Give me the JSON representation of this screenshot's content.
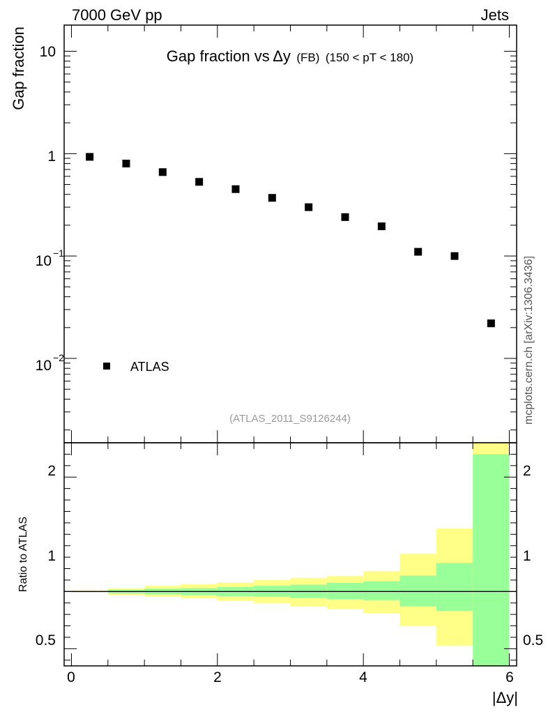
{
  "header": {
    "left": "7000 GeV pp",
    "right": "Jets"
  },
  "side_label": "mcplots.cern.ch [arXiv:1306.3436]",
  "watermark": "(ATLAS_2011_S9126244)",
  "chart_data": [
    {
      "type": "scatter",
      "title_main": "Gap fraction vs",
      "title_delta": "Δy",
      "title_tag": "(FB)",
      "title_range": "(150 < pT < 180)",
      "ylabel": "Gap fraction",
      "yscale": "log",
      "ylim": [
        0.0015,
        18
      ],
      "xlim": [
        -0.1,
        6.1
      ],
      "ytick_labels": {
        "t10": "10",
        "t1": "1",
        "t01_base": "10",
        "t01_exp": "−1",
        "t001_base": "10",
        "t001_exp": "−2"
      },
      "legend": {
        "label": "ATLAS",
        "position": "lower-left"
      },
      "series": [
        {
          "name": "ATLAS",
          "x": [
            0.25,
            0.75,
            1.25,
            1.75,
            2.25,
            2.75,
            3.25,
            3.75,
            4.25,
            4.75,
            5.25,
            5.75
          ],
          "y": [
            0.93,
            0.8,
            0.66,
            0.53,
            0.45,
            0.37,
            0.3,
            0.24,
            0.195,
            0.11,
            0.1,
            0.022
          ]
        }
      ]
    },
    {
      "type": "area",
      "ylabel": "Ratio to ATLAS",
      "xlabel": "|Δy|",
      "ylim": [
        0.35,
        2.3
      ],
      "xlim": [
        -0.1,
        6.1
      ],
      "reference_line": 1,
      "x_tick_labels": [
        "0",
        "2",
        "4",
        "6"
      ],
      "y_tick_labels": [
        "0.5",
        "1",
        "2"
      ],
      "bins": [
        0,
        0.5,
        1,
        1.5,
        2,
        2.5,
        3,
        3.5,
        4,
        4.5,
        5,
        5.5,
        6
      ],
      "band_green": {
        "lo": [
          0.995,
          0.985,
          0.975,
          0.97,
          0.96,
          0.955,
          0.945,
          0.935,
          0.925,
          0.87,
          0.83,
          0.35
        ],
        "hi": [
          1.005,
          1.015,
          1.025,
          1.03,
          1.04,
          1.05,
          1.06,
          1.075,
          1.09,
          1.14,
          1.25,
          2.2
        ]
      },
      "band_yellow": {
        "lo": [
          0.99,
          0.97,
          0.955,
          0.94,
          0.92,
          0.9,
          0.87,
          0.85,
          0.81,
          0.7,
          0.525,
          0.35
        ],
        "hi": [
          1.01,
          1.03,
          1.05,
          1.065,
          1.08,
          1.1,
          1.12,
          1.135,
          1.18,
          1.33,
          1.55,
          2.35
        ]
      },
      "colors": {
        "green": "#99ff99",
        "yellow": "#ffff88"
      }
    }
  ]
}
